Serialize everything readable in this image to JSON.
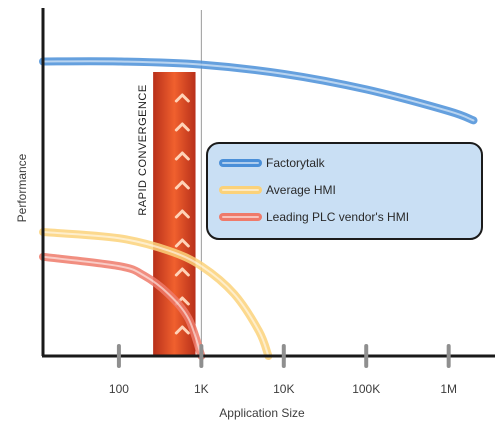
{
  "chart_data": {
    "type": "line",
    "title": "",
    "xlabel": "Application Size",
    "ylabel": "Performance",
    "x_scale": "log",
    "x_ticks": [
      {
        "value": 100,
        "label": "100"
      },
      {
        "value": 1000,
        "label": "1K"
      },
      {
        "value": 10000,
        "label": "10K"
      },
      {
        "value": 100000,
        "label": "100K"
      },
      {
        "value": 1000000,
        "label": "1M"
      }
    ],
    "xlim": [
      12,
      3000000
    ],
    "ylim": [
      0,
      100
    ],
    "y_ticks_shown": false,
    "grid": false,
    "reference_line": {
      "x": 1000
    },
    "series": [
      {
        "name": "Factorytalk",
        "color": "#4a8fd8",
        "points": [
          [
            12,
            95
          ],
          [
            100,
            95
          ],
          [
            1000,
            94
          ],
          [
            10000,
            91
          ],
          [
            100000,
            86
          ],
          [
            1000000,
            79
          ],
          [
            2000000,
            76
          ]
        ]
      },
      {
        "name": "Average HMI",
        "color": "#fbd27a",
        "points": [
          [
            12,
            40
          ],
          [
            100,
            38
          ],
          [
            400,
            34
          ],
          [
            1000,
            29
          ],
          [
            2500,
            20
          ],
          [
            5000,
            8
          ],
          [
            6500,
            0
          ]
        ]
      },
      {
        "name": "Leading PLC vendor's HMI",
        "color": "#ef7a6a",
        "points": [
          [
            12,
            32
          ],
          [
            100,
            29
          ],
          [
            200,
            26
          ],
          [
            400,
            20
          ],
          [
            700,
            12
          ],
          [
            1000,
            0
          ]
        ]
      }
    ],
    "band": {
      "x_from": 260,
      "x_to": 850,
      "label": "RAPID CONVERGENCE",
      "color": "#d94a26"
    },
    "legend": {
      "placement": "right",
      "items": [
        "Factorytalk",
        "Average HMI",
        "Leading PLC vendor's HMI"
      ]
    }
  }
}
